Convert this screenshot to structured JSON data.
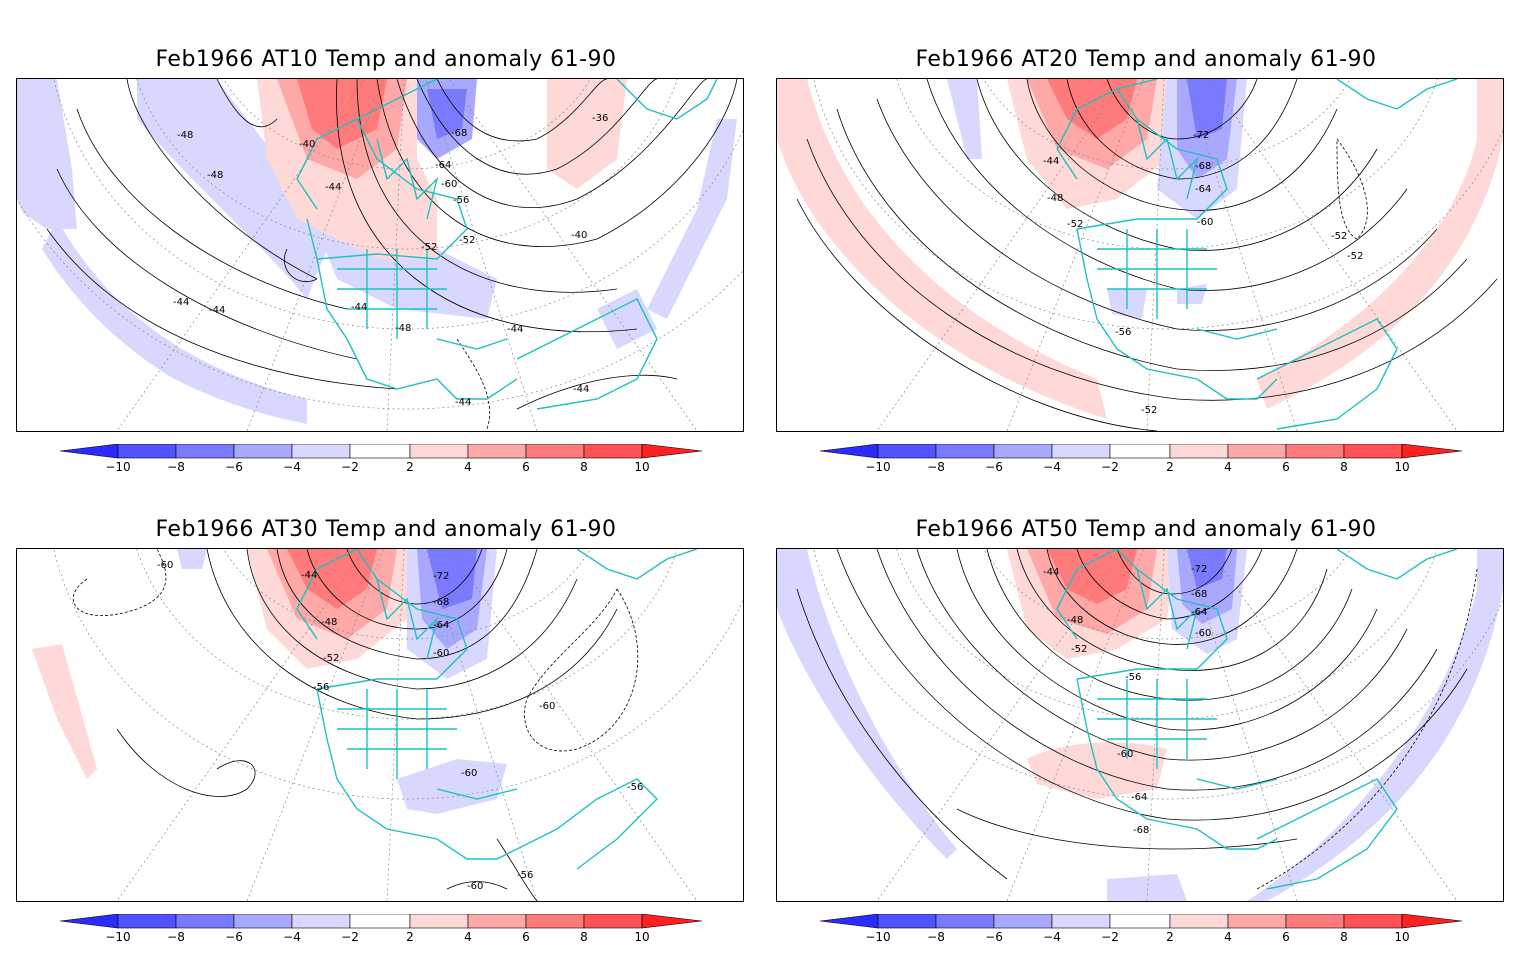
{
  "colorbar": {
    "ticks": [
      "−10",
      "−8",
      "−6",
      "−4",
      "−2",
      "2",
      "4",
      "6",
      "8",
      "10"
    ],
    "colors": [
      "#2b2bff",
      "#5252ff",
      "#7a7aff",
      "#a8a8ff",
      "#d8d8ff",
      "#ffffff",
      "#ffd8d8",
      "#ffa8a8",
      "#ff7a7a",
      "#ff5252",
      "#ff2020"
    ]
  },
  "panels": [
    {
      "title": "Feb1966 AT10 Temp and anomaly 61-90",
      "contour_labels": [
        "-40",
        "-48",
        "-48",
        "-44",
        "-60",
        "-56",
        "-64",
        "-68",
        "-52",
        "-52",
        "-40",
        "-36",
        "-44",
        "-44",
        "-44",
        "-48",
        "-44",
        "-44",
        "-44"
      ]
    },
    {
      "title": "Feb1966 AT20 Temp and anomaly 61-90",
      "contour_labels": [
        "-44",
        "-48",
        "-52",
        "-72",
        "-68",
        "-64",
        "-60",
        "-52",
        "-52",
        "-56",
        "-52"
      ]
    },
    {
      "title": "Feb1966 AT30 Temp and anomaly 61-90",
      "contour_labels": [
        "-60",
        "-44",
        "-48",
        "-52",
        "-56",
        "-72",
        "-68",
        "-64",
        "-60",
        "-60",
        "-60",
        "-56",
        "-60",
        "-56"
      ]
    },
    {
      "title": "Feb1966 AT50 Temp and anomaly 61-90",
      "contour_labels": [
        "-44",
        "-48",
        "-52",
        "-56",
        "-72",
        "-68",
        "-64",
        "-60",
        "-60",
        "-64",
        "-68"
      ]
    }
  ]
}
